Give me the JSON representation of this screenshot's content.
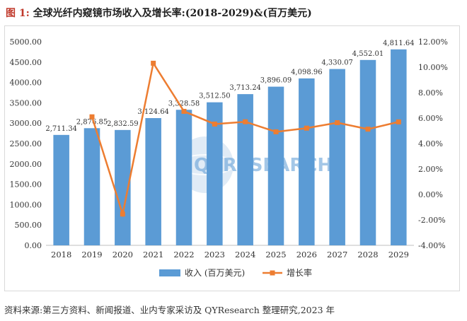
{
  "title": {
    "prefix": "图 1:",
    "text": "全球光纤内窥镜市场收入及增长率:(2018-2029)&(百万美元)"
  },
  "source": "资料来源:第三方资料、新闻报道、业内专家采访及 QYResearch 整理研究,2023 年",
  "watermark": "QYRESEARCH",
  "chart_data": {
    "type": "bar",
    "categories": [
      "2018",
      "2019",
      "2020",
      "2021",
      "2022",
      "2023",
      "2024",
      "2025",
      "2026",
      "2027",
      "2028",
      "2029"
    ],
    "series": [
      {
        "name": "收入 (百万美元)",
        "type": "bar",
        "axis": "left",
        "color": "#5b9bd5",
        "values": [
          2711.34,
          2876.85,
          2832.59,
          3124.64,
          3328.58,
          3512.5,
          3713.24,
          3896.09,
          4098.96,
          4330.07,
          4552.01,
          4811.64
        ],
        "labels": [
          "2,711.34",
          "2,876.85",
          "2,832.59",
          "3,124.64",
          "3,328.58",
          "3,512.50",
          "3,713.24",
          "3,896.09",
          "4,098.96",
          "4,330.07",
          "4,552.01",
          "4,811.64"
        ]
      },
      {
        "name": "增长率",
        "type": "line",
        "axis": "right",
        "color": "#ed7d31",
        "values": [
          null,
          6.1,
          -1.54,
          10.31,
          6.53,
          5.53,
          5.71,
          4.92,
          5.21,
          5.64,
          5.13,
          5.7
        ]
      }
    ],
    "y_left": {
      "min": 0,
      "max": 5000,
      "step": 500,
      "tick_labels": [
        "0.00",
        "500.00",
        "1000.00",
        "1500.00",
        "2000.00",
        "2500.00",
        "3000.00",
        "3500.00",
        "4000.00",
        "4500.00",
        "5000.00"
      ]
    },
    "y_right": {
      "min": -4,
      "max": 12,
      "step": 2,
      "tick_labels": [
        "-4.00%",
        "-2.00%",
        "0.00%",
        "2.00%",
        "4.00%",
        "6.00%",
        "8.00%",
        "10.00%",
        "12.00%"
      ]
    },
    "grid": false,
    "legend": "bottom"
  }
}
